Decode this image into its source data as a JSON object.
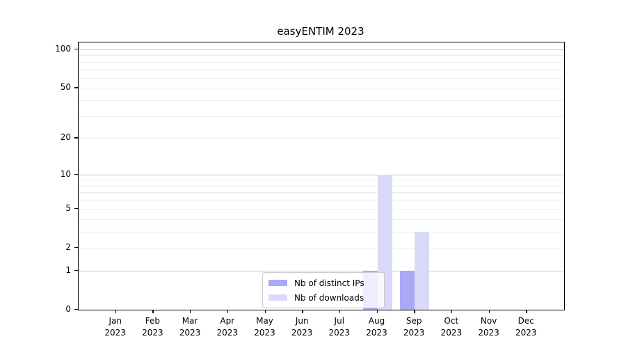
{
  "figure": {
    "title": "easyENTIM 2023"
  },
  "chart_data": {
    "type": "bar",
    "title": "easyENTIM 2023",
    "categories": [
      "Jan",
      "Feb",
      "Mar",
      "Apr",
      "May",
      "Jun",
      "Jul",
      "Aug",
      "Sep",
      "Oct",
      "Nov",
      "Dec"
    ],
    "category_year": "2023",
    "series": [
      {
        "name": "Nb of distinct IPs",
        "color": "#a9a9f7",
        "values": [
          0,
          0,
          0,
          0,
          0,
          0,
          0,
          1,
          1,
          0,
          0,
          0
        ]
      },
      {
        "name": "Nb of downloads",
        "color": "#d9d9fa",
        "values": [
          0,
          0,
          0,
          0,
          0,
          0,
          0,
          10,
          3,
          0,
          0,
          0
        ]
      }
    ],
    "xlabel": "",
    "ylabel": "",
    "yscale": "symlog-log1p",
    "ylim": [
      0,
      113
    ],
    "y_ticks": [
      0,
      1,
      2,
      5,
      10,
      20,
      50,
      100
    ],
    "y_major_gridlines": [
      1,
      10,
      100
    ],
    "y_minor_gridlines": [
      2,
      3,
      4,
      5,
      6,
      7,
      8,
      9,
      20,
      30,
      40,
      50,
      60,
      70,
      80,
      90
    ],
    "grid": true,
    "legend_position": "lower center inside plot"
  },
  "colors": {
    "distinct_ips_bar": "#a9a9f7",
    "downloads_bar": "#d9d9fa",
    "major_grid": "#c9c9c9",
    "minor_grid": "#ececec",
    "axis": "#000000",
    "legend_border": "#cccccc",
    "background": "#ffffff"
  }
}
